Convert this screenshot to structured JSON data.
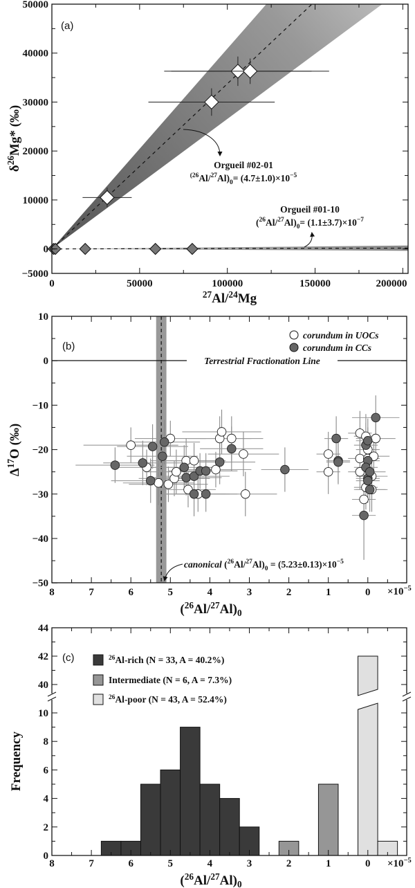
{
  "chart_data": [
    {
      "panel": "(a)",
      "type": "scatter",
      "xlabel": {
        "sup": "27",
        "a": "Al/",
        "sup2": "24",
        "b": "Mg"
      },
      "ylabel": {
        "pre": "δ",
        "sup": "26",
        "main": "Mg* (‰)"
      },
      "xlim": [
        0,
        203000
      ],
      "ylim": [
        -5000,
        50000
      ],
      "x_ticks": [
        0,
        50000,
        100000,
        150000,
        200000
      ],
      "x_tick_labels": [
        "0",
        "50000",
        "100000",
        "150000",
        "200000"
      ],
      "y_ticks": [
        -5000,
        0,
        10000,
        20000,
        30000,
        40000,
        50000
      ],
      "y_tick_labels": [
        "−5000",
        "0",
        "10000",
        "20000",
        "30000",
        "40000",
        "50000"
      ],
      "series": [
        {
          "marker": "diamond",
          "fill": "#ffffff",
          "points": [
            [
              31500,
              10500,
              14000,
              2000
            ],
            [
              91000,
              30000,
              36000,
              2800
            ],
            [
              106000,
              36300,
              42000,
              3000
            ],
            [
              113000,
              36300,
              45000,
              2600
            ]
          ]
        },
        {
          "marker": "diamond",
          "fill": "#777777",
          "points": [
            [
              1000,
              0,
              500,
              200
            ],
            [
              2000,
              0,
              800,
              200
            ],
            [
              19000,
              0,
              1500,
              200
            ],
            [
              59000,
              0,
              2500,
              200
            ],
            [
              80000,
              0,
              3000,
              200
            ]
          ]
        }
      ],
      "isochrons": [
        {
          "ratio": 4.7e-05,
          "ratio_err": 1e-05
        },
        {
          "ratio": 1.1e-07,
          "ratio_err": 3.7e-07
        }
      ],
      "annotations": [
        {
          "name": "Orgueil #02-01",
          "value": "= (4.7±1.0)×10",
          "exp": "−5"
        },
        {
          "name": "Orgueil #01-10",
          "value": "= (1.1±3.7)×10",
          "exp": "−7"
        }
      ]
    },
    {
      "panel": "(b)",
      "type": "scatter",
      "xlabel": {
        "open": "(",
        "sup": "26",
        "a": "Al/",
        "sup2": "27",
        "b": "Al)",
        "sub": "0"
      },
      "ylabel": {
        "pre": "Δ",
        "sup": "17",
        "main": "O (‰)"
      },
      "x_multiplier": "×10",
      "x_multiplier_exp": "−5",
      "xlim": [
        8,
        -1
      ],
      "ylim": [
        -50,
        10
      ],
      "x_ticks": [
        8,
        7,
        6,
        5,
        4,
        3,
        2,
        1,
        0
      ],
      "x_tick_labels": [
        "8",
        "7",
        "6",
        "5",
        "4",
        "3",
        "2",
        "1",
        "0"
      ],
      "y_ticks": [
        -50,
        -40,
        -30,
        -20,
        -10,
        0,
        10
      ],
      "y_tick_labels": [
        "−50",
        "−40",
        "−30",
        "−20",
        "−10",
        "0",
        "10"
      ],
      "legend_position": "top-right",
      "reference_line": {
        "y": 0,
        "label": "Terrestrial Fractionation Line"
      },
      "canonical": {
        "x": 5.23,
        "err": 0.13,
        "label_pre": "canonical ",
        "value": " = (5.23±0.13)×10",
        "exp": "−5"
      },
      "series": [
        {
          "name": "corundum in UOCs",
          "fill": "#ffffff",
          "points": [
            [
              6.0,
              -19,
              1.2,
              4
            ],
            [
              5.6,
              -24,
              0.8,
              4
            ],
            [
              5.3,
              -27.5,
              0.9,
              5
            ],
            [
              5.0,
              -17.5,
              0.9,
              4
            ],
            [
              5.05,
              -27.8,
              1.0,
              4
            ],
            [
              4.9,
              -26.5,
              0.9,
              4
            ],
            [
              4.85,
              -25,
              0.8,
              5
            ],
            [
              4.6,
              -22.5,
              0.9,
              5
            ],
            [
              4.55,
              -29,
              0.7,
              4
            ],
            [
              4.4,
              -22.5,
              0.8,
              4
            ],
            [
              4.3,
              -30,
              0.8,
              4
            ],
            [
              3.85,
              -24.5,
              0.9,
              4
            ],
            [
              3.75,
              -17.5,
              0.8,
              5
            ],
            [
              3.7,
              -16,
              1.0,
              5
            ],
            [
              3.45,
              -17.5,
              0.8,
              5
            ],
            [
              3.15,
              -21,
              0.9,
              5
            ],
            [
              3.1,
              -30,
              0.8,
              5
            ],
            [
              1.0,
              -21,
              0.3,
              5
            ],
            [
              1.0,
              -25,
              0.3,
              5
            ],
            [
              0.2,
              -16.3,
              0.3,
              5
            ],
            [
              0.2,
              -22,
              0.3,
              4
            ],
            [
              0.2,
              -25,
              0.3,
              4
            ],
            [
              0.05,
              -17,
              0.3,
              5
            ],
            [
              0.0,
              -20,
              0.3,
              5
            ],
            [
              0.05,
              -28.5,
              0.3,
              5
            ],
            [
              0.1,
              -31.2,
              0.3,
              5
            ],
            [
              0.0,
              -22,
              0.3,
              5
            ],
            [
              -0.2,
              -17.5,
              0.5,
              5
            ],
            [
              -0.15,
              -21.5,
              0.4,
              5
            ],
            [
              -0.1,
              -26,
              0.4,
              5
            ],
            [
              -0.1,
              -29,
              0.4,
              5
            ]
          ]
        },
        {
          "name": "corundum in CCs",
          "fill": "#666666",
          "points": [
            [
              6.4,
              -23.5,
              1.0,
              4
            ],
            [
              5.7,
              -23,
              1.0,
              5
            ],
            [
              5.45,
              -19.3,
              0.9,
              5
            ],
            [
              5.5,
              -27,
              1.0,
              5
            ],
            [
              5.2,
              -21.5,
              0.9,
              5
            ],
            [
              5.15,
              -18.3,
              0.9,
              5
            ],
            [
              4.65,
              -24,
              0.9,
              5
            ],
            [
              4.6,
              -26.3,
              0.9,
              4
            ],
            [
              4.4,
              -26,
              0.9,
              5
            ],
            [
              4.4,
              -30,
              0.8,
              5
            ],
            [
              4.25,
              -24.8,
              0.8,
              4
            ],
            [
              4.1,
              -24.8,
              0.8,
              4
            ],
            [
              4.1,
              -30,
              0.8,
              4
            ],
            [
              3.75,
              -22.8,
              0.9,
              5
            ],
            [
              3.45,
              -19.8,
              0.8,
              5
            ],
            [
              2.1,
              -24.5,
              0.6,
              5
            ],
            [
              0.8,
              -17.5,
              0.3,
              5
            ],
            [
              0.75,
              -22.5,
              0.3,
              5
            ],
            [
              0.75,
              -22.8,
              0.3,
              5
            ],
            [
              0.05,
              -19,
              0.3,
              5
            ],
            [
              0.0,
              -18,
              0.3,
              5
            ],
            [
              0.0,
              -22.5,
              0.3,
              5
            ],
            [
              0.05,
              -24,
              0.3,
              5
            ],
            [
              0.0,
              -26.5,
              0.3,
              5
            ],
            [
              -0.05,
              -25,
              0.4,
              5
            ],
            [
              -0.05,
              -29,
              0.4,
              5
            ],
            [
              0.1,
              -34.8,
              0.3,
              10
            ],
            [
              -0.2,
              -12.8,
              0.6,
              5
            ],
            [
              0.0,
              -27,
              0.3,
              5
            ]
          ]
        }
      ]
    },
    {
      "panel": "(c)",
      "type": "bar",
      "xlabel": {
        "open": "(",
        "sup": "26",
        "a": "Al/",
        "sup2": "27",
        "b": "Al)",
        "sub": "0"
      },
      "ylabel": "Frequency",
      "x_multiplier": "×10",
      "x_multiplier_exp": "−5",
      "xlim": [
        8,
        -1
      ],
      "ylim_lower": [
        0,
        10
      ],
      "ylim_upper": [
        40,
        44
      ],
      "axis_break": true,
      "x_ticks": [
        8,
        7,
        6,
        5,
        4,
        3,
        2,
        1,
        0
      ],
      "x_tick_labels": [
        "8",
        "7",
        "6",
        "5",
        "4",
        "3",
        "2",
        "1",
        "0"
      ],
      "y_ticks_lower": [
        0,
        2,
        4,
        6,
        8,
        10
      ],
      "y_tick_labels_lower": [
        "0",
        "2",
        "4",
        "6",
        "8",
        "10"
      ],
      "y_ticks_upper": [
        40,
        42,
        44
      ],
      "y_tick_labels_upper": [
        "40",
        "42",
        "44"
      ],
      "legend_position": "top-left",
      "bin_width": 0.5,
      "series": [
        {
          "name": "Al-rich",
          "sup": "26",
          "stats": "(N = 33, A = 40.2%)",
          "N": 33,
          "A": "40.2%",
          "fill": "#3a3a3a",
          "bins": [
            [
              6.5,
              1
            ],
            [
              6.0,
              1
            ],
            [
              5.5,
              5
            ],
            [
              5.0,
              6
            ],
            [
              4.5,
              9
            ],
            [
              4.0,
              5
            ],
            [
              3.5,
              4
            ],
            [
              3.0,
              2
            ]
          ]
        },
        {
          "name": "Intermediate",
          "sup": "",
          "stats": "(N = 6, A = 7.3%)",
          "N": 6,
          "A": "7.3%",
          "fill": "#969696",
          "bins": [
            [
              2.0,
              1
            ],
            [
              1.0,
              5
            ]
          ]
        },
        {
          "name": "Al-poor",
          "sup": "26",
          "stats": "(N = 43, A = 52.4%)",
          "N": 43,
          "A": "52.4%",
          "fill": "#e0e0e0",
          "bins": [
            [
              0.0,
              42
            ],
            [
              -0.5,
              1
            ]
          ]
        }
      ]
    }
  ]
}
